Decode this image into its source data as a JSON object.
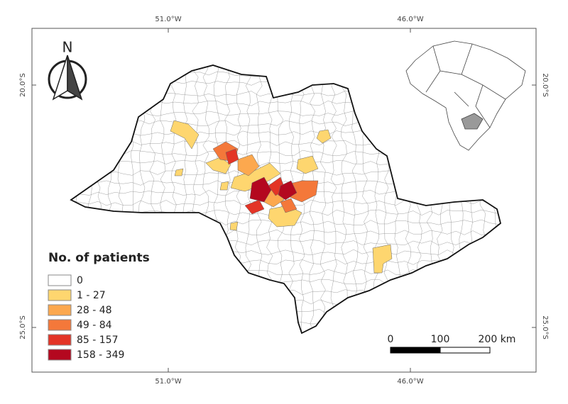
{
  "map": {
    "grid_labels": {
      "top": [
        "51.0°W",
        "46.0°W"
      ],
      "bottom": [
        "51.0°W",
        "46.0°W"
      ],
      "left": [
        "20.0°S",
        "25.0°S"
      ],
      "right": [
        "20.0°S",
        "25.0°S"
      ]
    },
    "north_arrow": "N",
    "legend": {
      "title": "No. of patients",
      "classes": [
        {
          "label": "0",
          "color": "#ffffff"
        },
        {
          "label": "1 - 27",
          "color": "#fed66f"
        },
        {
          "label": "28 - 48",
          "color": "#fca84e"
        },
        {
          "label": "49 - 84",
          "color": "#f4783a"
        },
        {
          "label": "85 - 157",
          "color": "#e33426"
        },
        {
          "label": "158 - 349",
          "color": "#b4081f"
        }
      ]
    },
    "scale_bar": {
      "labels": [
        "0",
        "100",
        "200 km"
      ]
    }
  }
}
